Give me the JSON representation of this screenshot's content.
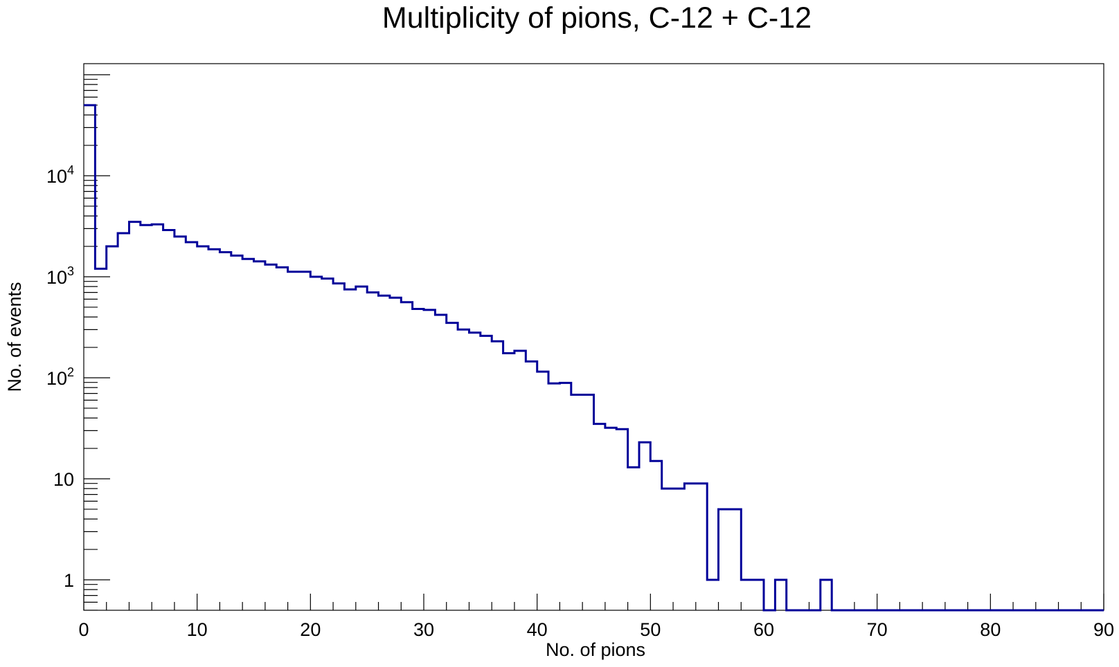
{
  "chart_data": {
    "type": "line",
    "subtype": "step-histogram",
    "title": "Multiplicity of pions, C-12 + C-12",
    "xlabel": "No. of pions",
    "ylabel": "No. of events",
    "xlim": [
      0,
      90
    ],
    "ylim": [
      0.5,
      90000
    ],
    "yscale": "log",
    "grid": false,
    "legend": "none",
    "line_color": "#000099",
    "x_ticks": [
      "0",
      "10",
      "20",
      "30",
      "40",
      "50",
      "60",
      "70",
      "80",
      "90"
    ],
    "y_ticks": [
      {
        "value": 1,
        "base": "1",
        "exp": ""
      },
      {
        "value": 10,
        "base": "10",
        "exp": ""
      },
      {
        "value": 100,
        "base": "10",
        "exp": "2"
      },
      {
        "value": 1000,
        "base": "10",
        "exp": "3"
      },
      {
        "value": 10000,
        "base": "10",
        "exp": "4"
      }
    ],
    "bin_width": 1,
    "values": [
      50000,
      1200,
      2000,
      2700,
      3500,
      3250,
      3300,
      2900,
      2500,
      2200,
      2000,
      1870,
      1750,
      1620,
      1500,
      1420,
      1320,
      1240,
      1120,
      1120,
      1000,
      960,
      860,
      750,
      800,
      700,
      650,
      620,
      560,
      480,
      470,
      420,
      350,
      300,
      280,
      260,
      230,
      175,
      185,
      145,
      115,
      88,
      89,
      68,
      68,
      35,
      32,
      31,
      13,
      23,
      15,
      8,
      8,
      9,
      9,
      1,
      5,
      5,
      1,
      1,
      0,
      1,
      0,
      0,
      0,
      1,
      0,
      0,
      0,
      0,
      0,
      0,
      0,
      0,
      0,
      0,
      0,
      0,
      0,
      0,
      0,
      0,
      0,
      0,
      0,
      0,
      0,
      0,
      0,
      0
    ]
  }
}
